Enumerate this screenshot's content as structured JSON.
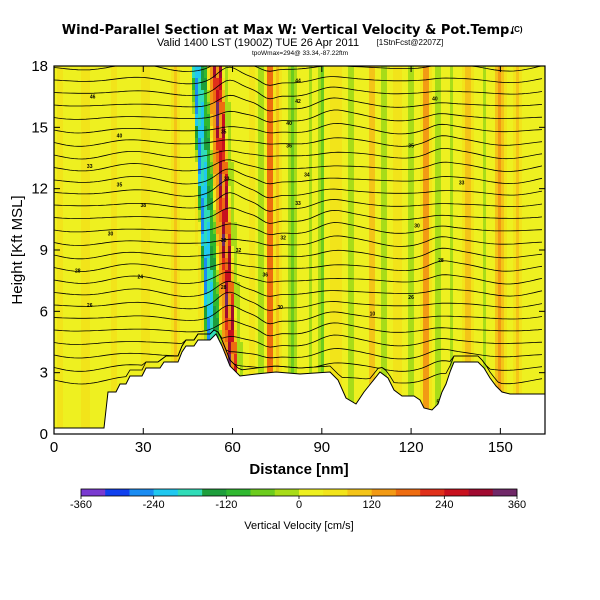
{
  "chart_data": {
    "type": "heatmap",
    "title": "Wind-Parallel Section at Max W: Vertical Velocity & Pot.Temp.",
    "title_mark": "(C)",
    "subtitle": "Valid 1400 LST (1900Z) TUE 26 Apr 2011",
    "subtitle_tag": "[1StnFcst@2207Z]",
    "location_line": "tpoWmax=294@ 33.34,-87.22ftm",
    "xlabel": "Distance [nm]",
    "ylabel": "Height [Kft MSL]",
    "xlim": [
      0,
      165
    ],
    "ylim": [
      0,
      18
    ],
    "xticks": [
      0,
      30,
      60,
      90,
      120,
      150
    ],
    "yticks": [
      0,
      3,
      6,
      9,
      12,
      15,
      18
    ],
    "grid": false,
    "colorbar": {
      "label": "Vertical Velocity [cm/s]",
      "range": [
        -360,
        360
      ],
      "tick_labels": [
        "-360",
        "-240",
        "-120",
        "0",
        "120",
        "240",
        "360"
      ],
      "colors": [
        "#7a3ad0",
        "#1040ee",
        "#1a8cf2",
        "#20c8f0",
        "#30dcb8",
        "#1e9e3c",
        "#30b830",
        "#6ccc1e",
        "#a8dc18",
        "#eef020",
        "#f2e41a",
        "#f4c418",
        "#f29a14",
        "#ee6c10",
        "#e0301a",
        "#c8101e",
        "#a00a30",
        "#702868"
      ]
    },
    "contour_variable": "Potential temperature (K)",
    "contour_labels": [
      {
        "x": 12,
        "y": 6.3,
        "text": "26"
      },
      {
        "x": 8,
        "y": 8.0,
        "text": "28"
      },
      {
        "x": 19,
        "y": 9.8,
        "text": "30"
      },
      {
        "x": 12,
        "y": 13.1,
        "text": "33"
      },
      {
        "x": 22,
        "y": 12.2,
        "text": "35"
      },
      {
        "x": 30,
        "y": 11.2,
        "text": "38"
      },
      {
        "x": 22,
        "y": 14.6,
        "text": "40"
      },
      {
        "x": 13,
        "y": 16.5,
        "text": "46"
      },
      {
        "x": 29,
        "y": 7.7,
        "text": "24"
      },
      {
        "x": 57,
        "y": 7.2,
        "text": "28"
      },
      {
        "x": 57,
        "y": 9.5,
        "text": "30"
      },
      {
        "x": 58,
        "y": 12.5,
        "text": "33"
      },
      {
        "x": 57,
        "y": 14.8,
        "text": "35"
      },
      {
        "x": 62,
        "y": 9.0,
        "text": "32"
      },
      {
        "x": 71,
        "y": 7.8,
        "text": "36"
      },
      {
        "x": 76,
        "y": 6.2,
        "text": "30"
      },
      {
        "x": 77,
        "y": 9.6,
        "text": "32"
      },
      {
        "x": 79,
        "y": 14.1,
        "text": "36"
      },
      {
        "x": 79,
        "y": 15.2,
        "text": "40"
      },
      {
        "x": 82,
        "y": 16.3,
        "text": "42"
      },
      {
        "x": 82,
        "y": 17.3,
        "text": "44"
      },
      {
        "x": 85,
        "y": 12.7,
        "text": "34"
      },
      {
        "x": 82,
        "y": 11.3,
        "text": "33"
      },
      {
        "x": 107,
        "y": 5.9,
        "text": "10"
      },
      {
        "x": 120,
        "y": 14.1,
        "text": "35"
      },
      {
        "x": 128,
        "y": 16.4,
        "text": "40"
      },
      {
        "x": 137,
        "y": 12.3,
        "text": "33"
      },
      {
        "x": 122,
        "y": 10.2,
        "text": "30"
      },
      {
        "x": 130,
        "y": 8.5,
        "text": "28"
      },
      {
        "x": 120,
        "y": 6.7,
        "text": "26"
      },
      {
        "x": 129,
        "y": 1.6,
        "text": "5"
      }
    ]
  }
}
